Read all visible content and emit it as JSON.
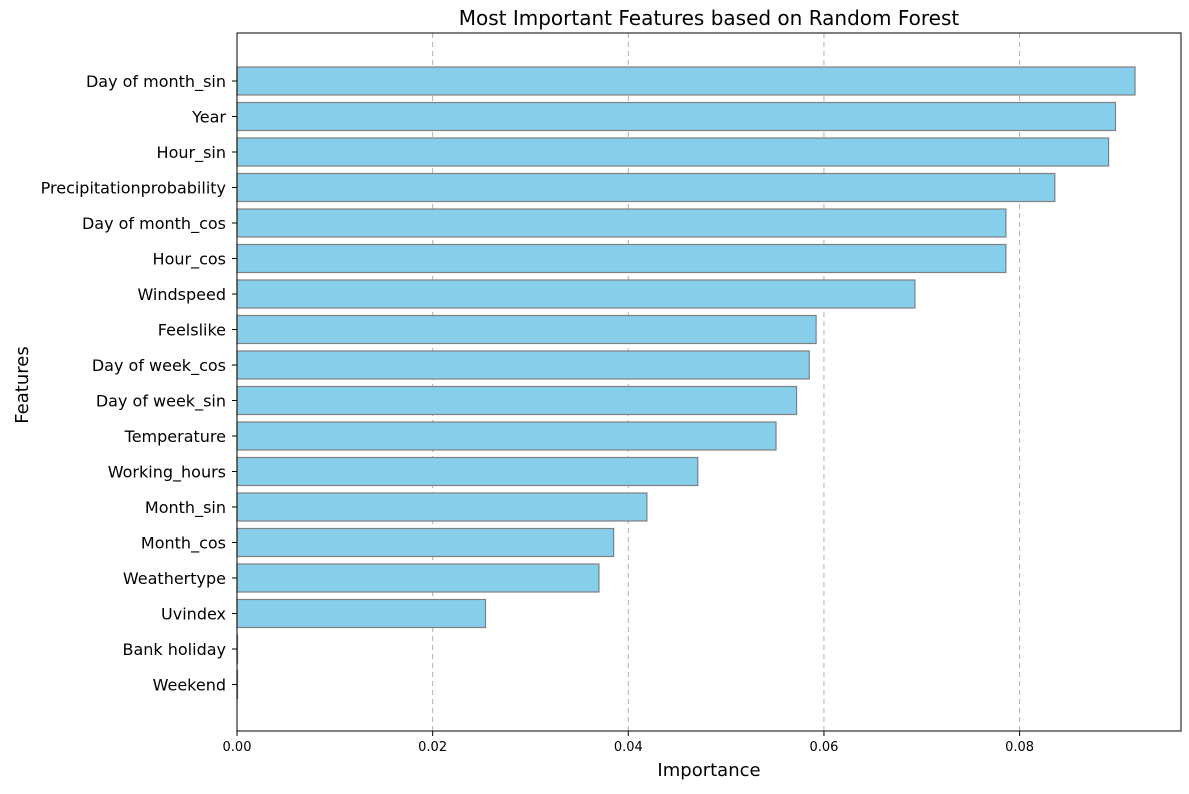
{
  "chart_data": {
    "type": "bar",
    "orientation": "horizontal",
    "title": "Most Important Features based on Random Forest",
    "xlabel": "Importance",
    "ylabel": "Features",
    "xlim": [
      0,
      0.0965
    ],
    "xticks": [
      0.0,
      0.02,
      0.04,
      0.06,
      0.08
    ],
    "xtick_labels": [
      "0.00",
      "0.02",
      "0.04",
      "0.06",
      "0.08"
    ],
    "grid": "x-dashed",
    "categories": [
      "Day of month_sin",
      "Year",
      "Hour_sin",
      "Precipitationprobability",
      "Day of month_cos",
      "Hour_cos",
      "Windspeed",
      "Feelslike",
      "Day of week_cos",
      "Day of week_sin",
      "Temperature",
      "Working_hours",
      "Month_sin",
      "Month_cos",
      "Weathertype",
      "Uvindex",
      "Bank holiday",
      "Weekend"
    ],
    "values": [
      0.0918,
      0.0898,
      0.0891,
      0.0836,
      0.0786,
      0.0786,
      0.0693,
      0.0592,
      0.0585,
      0.0572,
      0.0551,
      0.0471,
      0.0419,
      0.0385,
      0.037,
      0.0254,
      0.0,
      0.0
    ],
    "bar_color": "#87CEEB",
    "edge_color": "#808080"
  }
}
